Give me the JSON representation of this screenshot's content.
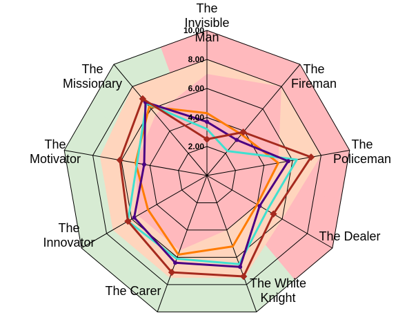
{
  "chart_data": {
    "type": "radar",
    "categories": [
      "The Invisible Man",
      "The Fireman",
      "The Policeman",
      "The Dealer",
      "The White Knight",
      "The Carer",
      "The Innovator",
      "The Motivator",
      "The Missionary"
    ],
    "category_label_lines": [
      [
        "The",
        "Invisible",
        "Man"
      ],
      [
        "The",
        "Fireman"
      ],
      [
        "The",
        "Policeman"
      ],
      [
        "The Dealer"
      ],
      [
        "The White",
        "Knight"
      ],
      [
        "The Carer"
      ],
      [
        "The",
        "Innovator"
      ],
      [
        "The",
        "Motivator"
      ],
      [
        "The",
        "Missionary"
      ]
    ],
    "rlim": [
      0,
      10
    ],
    "ticks": [
      2,
      4,
      6,
      8,
      10
    ],
    "tick_labels": [
      "2.00",
      "4.00",
      "6.00",
      "8.00",
      "10.00"
    ],
    "grid": true,
    "background_bands": [
      {
        "name": "outer",
        "values": [
          10,
          10,
          10,
          10,
          10,
          10,
          10,
          10,
          10
        ],
        "colors": [
          "#ffb9bd",
          "#ffb9bd",
          "#ffb9bd",
          "#ffb9bd",
          "#d7ebd3",
          "#d7ebd3",
          "#d7ebd3",
          "#d7ebd3",
          "#d7ebd3"
        ]
      },
      {
        "name": "peach",
        "values": [
          8,
          8,
          8,
          6,
          7.5,
          7.5,
          7.5,
          7.5,
          8
        ],
        "color": "#ffd5bd"
      },
      {
        "name": "inner",
        "values": [
          7,
          8,
          5,
          4,
          4,
          5.5,
          5.5,
          5,
          5.5
        ],
        "color": "#ffb9bd"
      }
    ],
    "series": [
      {
        "values": [
          4.3,
          3.7,
          5.0,
          4.0,
          5.2,
          5.8,
          4.7,
          5.0,
          6.2
        ],
        "color": "#ff7c00",
        "marker": "none"
      },
      {
        "values": [
          3.2,
          2.2,
          6.3,
          4.8,
          6.5,
          6.1,
          6.3,
          4.9,
          6.5
        ],
        "color": "#40e0d0",
        "marker": "none"
      },
      {
        "values": [
          3.7,
          3.2,
          5.7,
          4.2,
          6.7,
          6.4,
          5.8,
          4.4,
          6.6
        ],
        "color": "#4b0082",
        "marker": "dot"
      },
      {
        "values": [
          2.5,
          3.9,
          7.3,
          5.3,
          7.4,
          7.1,
          6.3,
          6.1,
          6.9
        ],
        "color": "#a52a1e",
        "marker": "diamond"
      }
    ]
  }
}
